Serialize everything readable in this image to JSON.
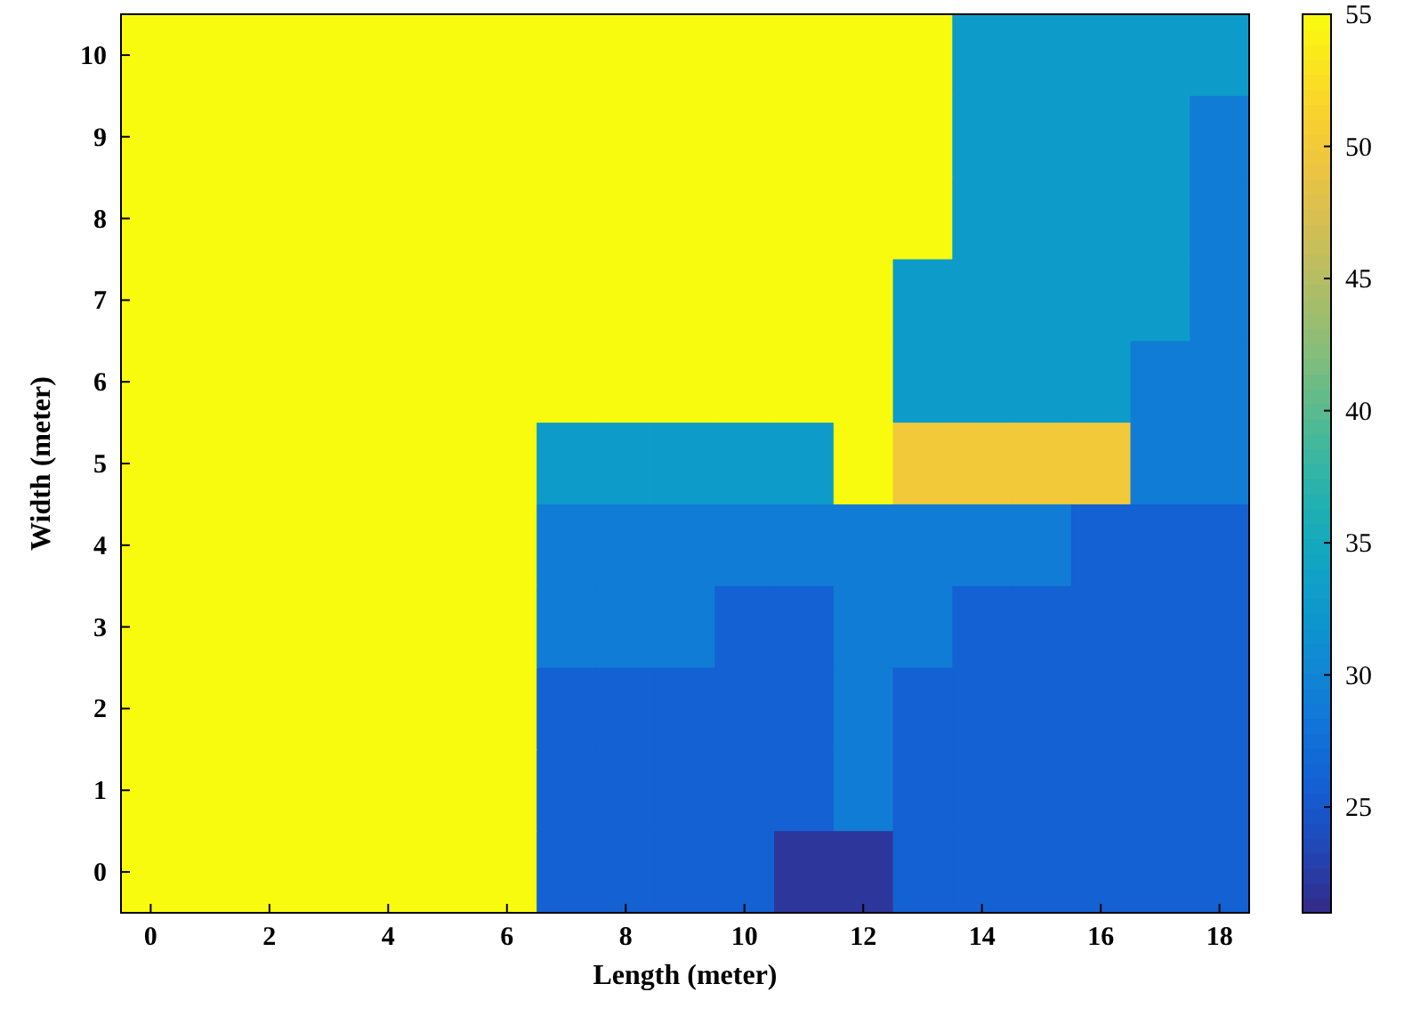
{
  "chart_data": {
    "type": "heatmap",
    "xlabel": "Length (meter)",
    "ylabel": "Width (meter)",
    "categories": [
      "0",
      null,
      "2",
      null,
      "4",
      null,
      "6",
      null,
      "8",
      null,
      "10",
      null,
      "12",
      null,
      "14",
      null,
      "16",
      null,
      "18"
    ],
    "y_categories": [
      "10",
      "9",
      "8",
      "7",
      "6",
      "5",
      "4",
      "3",
      "2",
      "1",
      "0"
    ],
    "cells": [
      [
        55,
        55,
        55,
        55,
        55,
        55,
        55,
        55,
        55,
        55,
        55,
        55,
        55,
        55,
        33,
        33,
        33,
        33,
        33
      ],
      [
        55,
        55,
        55,
        55,
        55,
        55,
        55,
        55,
        55,
        55,
        55,
        55,
        55,
        55,
        33,
        33,
        33,
        33,
        29
      ],
      [
        55,
        55,
        55,
        55,
        55,
        55,
        55,
        55,
        55,
        55,
        55,
        55,
        55,
        55,
        33,
        33,
        33,
        33,
        29
      ],
      [
        55,
        55,
        55,
        55,
        55,
        55,
        55,
        55,
        55,
        55,
        55,
        55,
        55,
        33,
        33,
        33,
        33,
        33,
        29
      ],
      [
        55,
        55,
        55,
        55,
        55,
        55,
        55,
        55,
        55,
        55,
        55,
        55,
        55,
        33,
        33,
        33,
        33,
        29,
        29
      ],
      [
        55,
        55,
        55,
        55,
        55,
        55,
        55,
        33,
        33,
        33,
        33,
        33,
        55,
        50,
        50,
        50,
        50,
        29,
        29
      ],
      [
        55,
        55,
        55,
        55,
        55,
        55,
        55,
        29,
        29,
        29,
        29,
        29,
        29,
        29,
        29,
        29,
        26,
        26,
        26
      ],
      [
        55,
        55,
        55,
        55,
        55,
        55,
        55,
        29,
        29,
        29,
        26,
        26,
        29,
        29,
        26,
        26,
        26,
        26,
        26
      ],
      [
        55,
        55,
        55,
        55,
        55,
        55,
        55,
        26,
        26,
        26,
        26,
        26,
        29,
        26,
        26,
        26,
        26,
        26,
        26
      ],
      [
        55,
        55,
        55,
        55,
        55,
        55,
        55,
        26,
        26,
        26,
        26,
        26,
        29,
        26,
        26,
        26,
        26,
        26,
        26
      ],
      [
        55,
        55,
        55,
        55,
        55,
        55,
        55,
        26,
        26,
        26,
        26,
        22,
        22,
        26,
        26,
        26,
        26,
        26,
        26
      ]
    ],
    "clim": [
      21,
      55
    ],
    "cticks": [
      25,
      30,
      35,
      40,
      45,
      50,
      55
    ]
  }
}
